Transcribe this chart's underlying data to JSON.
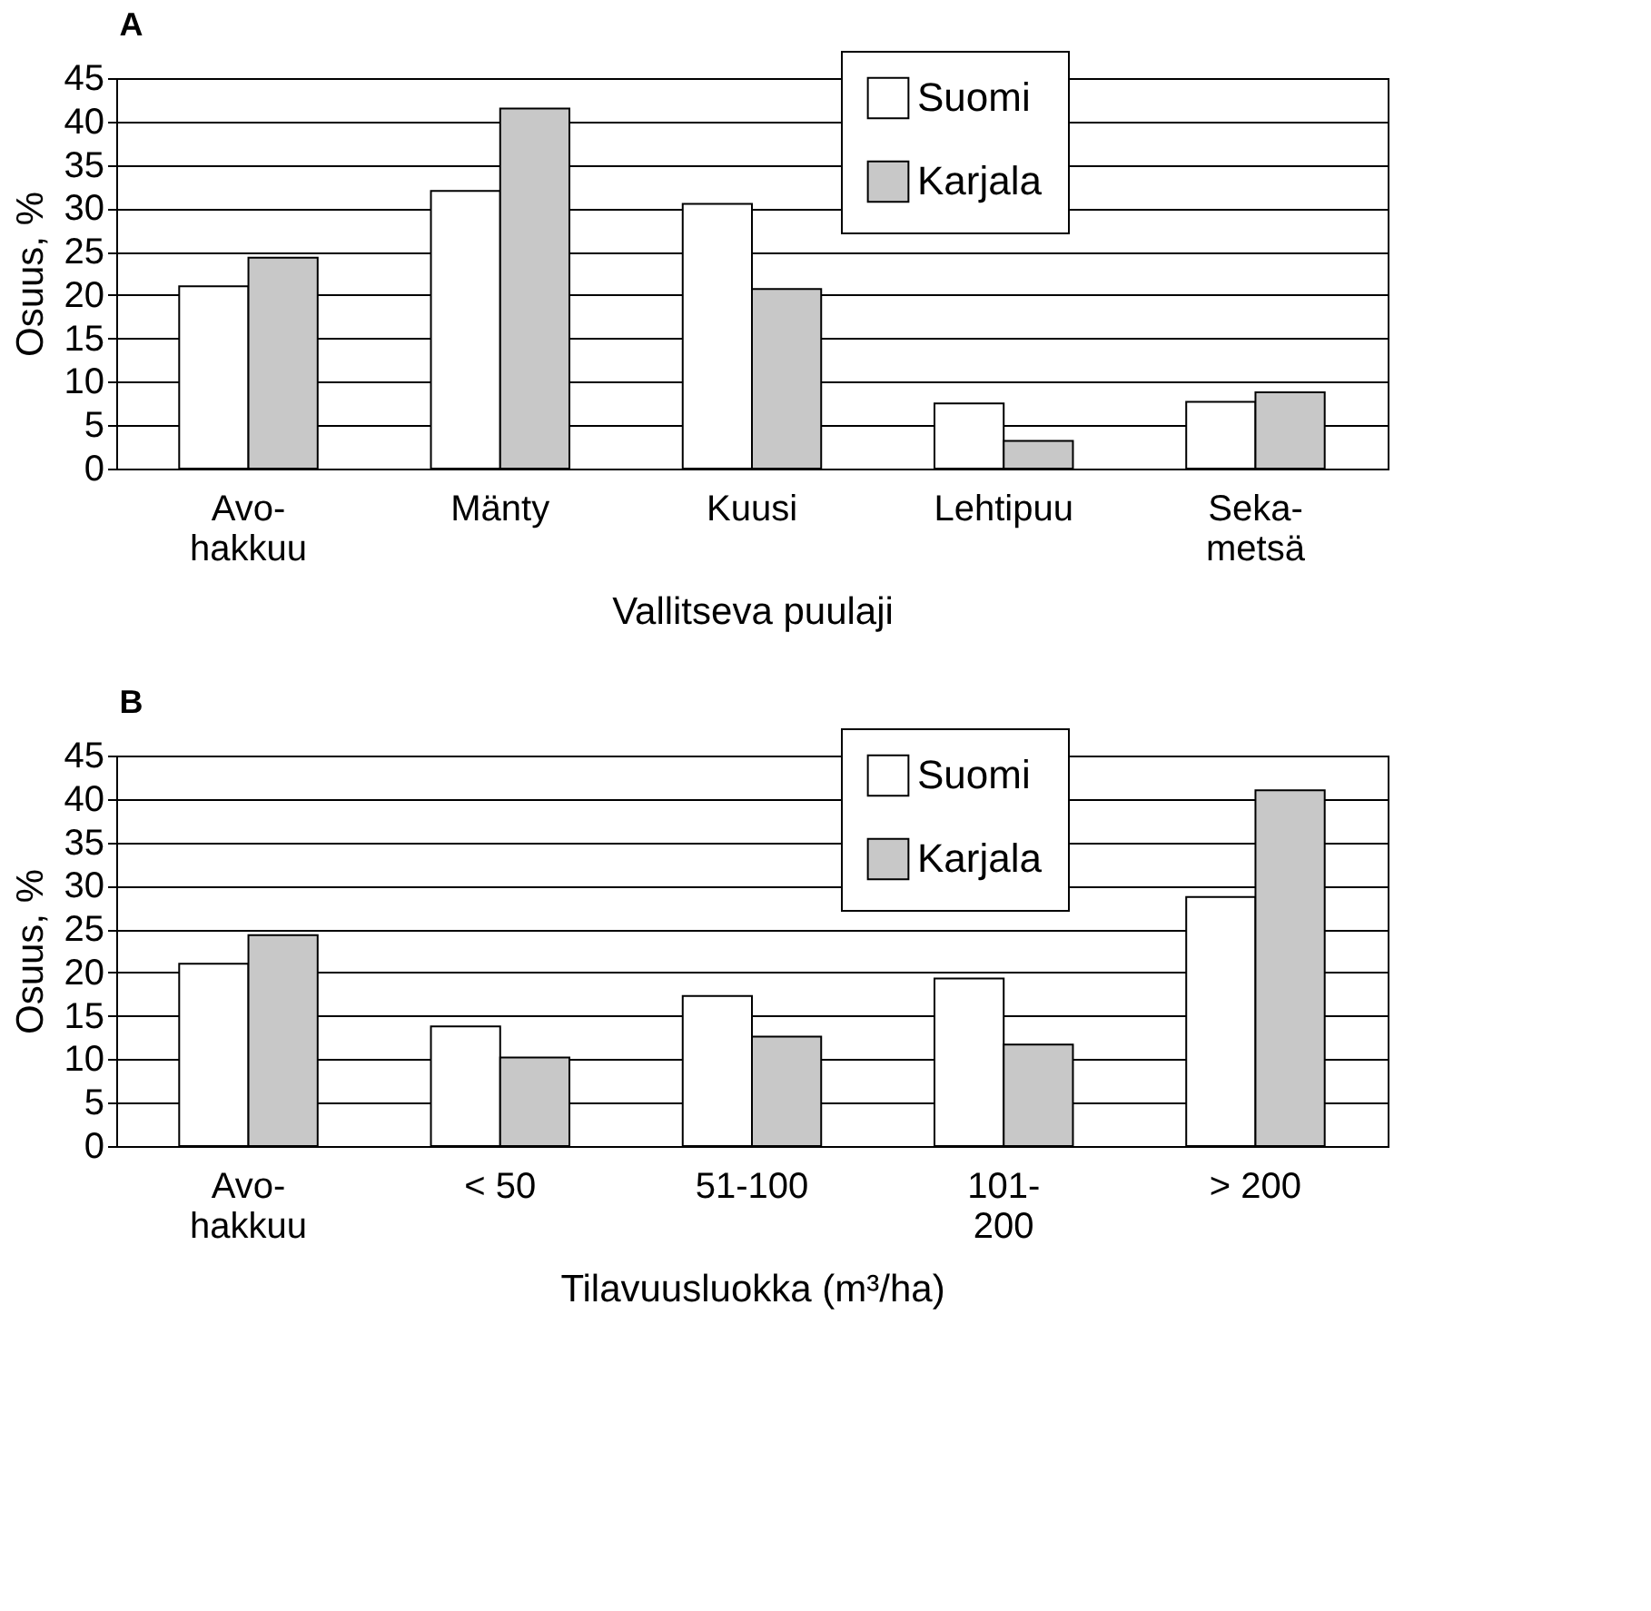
{
  "chart_data": [
    {
      "type": "bar",
      "title": "A",
      "xlabel": "Vallitseva puulaji",
      "ylabel": "Osuus, %",
      "categories": [
        "Avo-\nhakkuu",
        "Mänty",
        "Kuusi",
        "Lehtipuu",
        "Seka-\nmetsä"
      ],
      "series": [
        {
          "name": "Suomi",
          "color": "#ffffff",
          "values": [
            21,
            32,
            30.5,
            7.5,
            7.7
          ]
        },
        {
          "name": "Karjala",
          "color": "#c8c8c8",
          "values": [
            24.3,
            41.5,
            20.7,
            3.2,
            8.8
          ]
        }
      ],
      "ylim": [
        0,
        45
      ],
      "yticks": [
        0,
        5,
        10,
        15,
        20,
        25,
        30,
        35,
        40,
        45
      ],
      "grid": "y",
      "legend": "top right"
    },
    {
      "type": "bar",
      "title": "B",
      "xlabel": "Tilavuusluokka  (m³/ha)",
      "ylabel": "Osuus, %",
      "categories": [
        "Avo-\nhakkuu",
        "< 50",
        "51-100",
        "101-\n200",
        "> 200"
      ],
      "series": [
        {
          "name": "Suomi",
          "color": "#ffffff",
          "values": [
            21,
            13.8,
            17.3,
            19.3,
            28.7
          ]
        },
        {
          "name": "Karjala",
          "color": "#c8c8c8",
          "values": [
            24.3,
            10.2,
            12.6,
            11.7,
            41
          ]
        }
      ],
      "ylim": [
        0,
        45
      ],
      "yticks": [
        0,
        5,
        10,
        15,
        20,
        25,
        30,
        35,
        40,
        45
      ],
      "grid": "y",
      "legend": "top right"
    }
  ]
}
